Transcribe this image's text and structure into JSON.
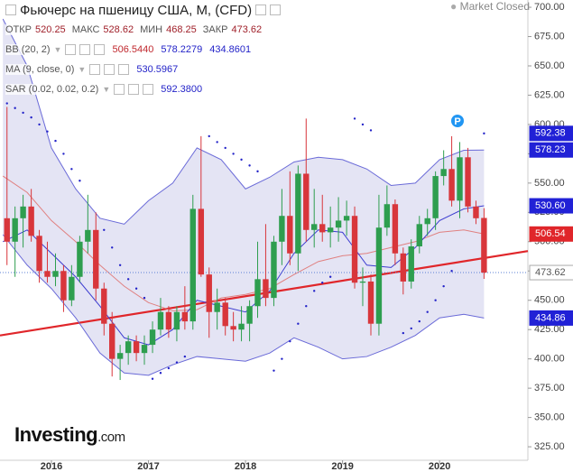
{
  "chart_data": {
    "type": "candlestick",
    "title": "Фьючерс на пшеницу США, М, (CFD)",
    "status": "Market Closed",
    "brand": "Investing",
    "brand_suffix": ".com",
    "annotation": "P",
    "ohlc_legend": [
      {
        "label": "ОТКР",
        "value": 520.25
      },
      {
        "label": "МАКС",
        "value": 528.62
      },
      {
        "label": "МИН",
        "value": 468.25
      },
      {
        "label": "ЗАКР",
        "value": 473.62
      }
    ],
    "indicators": [
      {
        "name": "BB (20, 2)",
        "values": [
          "506.5440",
          "578.2279",
          "434.8601"
        ],
        "colors": [
          "#c0282e",
          "#2323c8",
          "#2323c8"
        ]
      },
      {
        "name": "MA (9, close, 0)",
        "values": [
          "530.5967"
        ],
        "colors": [
          "#2323c8"
        ]
      },
      {
        "name": "SAR (0.02, 0.02, 0.2)",
        "values": [
          "592.3800"
        ],
        "colors": [
          "#2323c8"
        ]
      }
    ],
    "x": [
      2015.542,
      2015.625,
      2015.708,
      2015.792,
      2015.875,
      2015.958,
      2016.042,
      2016.125,
      2016.208,
      2016.292,
      2016.375,
      2016.458,
      2016.542,
      2016.625,
      2016.708,
      2016.792,
      2016.875,
      2016.958,
      2017.042,
      2017.125,
      2017.208,
      2017.292,
      2017.375,
      2017.458,
      2017.542,
      2017.625,
      2017.708,
      2017.792,
      2017.875,
      2017.958,
      2018.042,
      2018.125,
      2018.208,
      2018.292,
      2018.375,
      2018.458,
      2018.542,
      2018.625,
      2018.708,
      2018.792,
      2018.875,
      2018.958,
      2019.042,
      2019.125,
      2019.208,
      2019.292,
      2019.375,
      2019.458,
      2019.542,
      2019.625,
      2019.708,
      2019.792,
      2019.875,
      2019.958,
      2020.042,
      2020.125,
      2020.208,
      2020.292,
      2020.375,
      2020.458
    ],
    "open": [
      520,
      500,
      520,
      530,
      505,
      475,
      470,
      475,
      450,
      470,
      500,
      510,
      460,
      430,
      400,
      405,
      415,
      405,
      412,
      425,
      440,
      425,
      440,
      432,
      528,
      472,
      440,
      448,
      428,
      425,
      430,
      445,
      468,
      452,
      500,
      522,
      490,
      558,
      510,
      515,
      508,
      512,
      518,
      522,
      465,
      466,
      430,
      512,
      532,
      490,
      466,
      496,
      515,
      520,
      556,
      562,
      535,
      572,
      530,
      520.25
    ],
    "high": [
      615,
      530,
      540,
      545,
      510,
      500,
      490,
      480,
      480,
      505,
      540,
      525,
      465,
      440,
      412,
      420,
      420,
      420,
      432,
      452,
      445,
      445,
      462,
      540,
      590,
      478,
      460,
      452,
      440,
      445,
      450,
      500,
      515,
      505,
      545,
      560,
      565,
      605,
      545,
      540,
      530,
      538,
      535,
      530,
      478,
      472,
      540,
      548,
      536,
      495,
      502,
      522,
      528,
      560,
      578,
      590,
      585,
      580,
      535,
      528.62
    ],
    "low": [
      480,
      470,
      495,
      500,
      465,
      465,
      462,
      440,
      445,
      465,
      490,
      450,
      420,
      385,
      382,
      395,
      398,
      395,
      405,
      420,
      418,
      415,
      425,
      425,
      470,
      418,
      425,
      420,
      415,
      415,
      415,
      435,
      445,
      445,
      480,
      480,
      475,
      500,
      495,
      500,
      495,
      500,
      505,
      460,
      445,
      420,
      420,
      505,
      480,
      455,
      460,
      490,
      505,
      510,
      548,
      530,
      520,
      525,
      515,
      468.25
    ],
    "close": [
      500,
      520,
      530,
      505,
      475,
      470,
      475,
      450,
      470,
      500,
      510,
      460,
      430,
      400,
      405,
      415,
      405,
      412,
      425,
      440,
      425,
      440,
      432,
      528,
      472,
      440,
      448,
      428,
      425,
      430,
      445,
      468,
      452,
      500,
      522,
      490,
      558,
      510,
      515,
      508,
      512,
      518,
      522,
      465,
      466,
      430,
      512,
      532,
      490,
      466,
      496,
      515,
      520,
      556,
      562,
      535,
      572,
      530,
      520,
      473.62
    ],
    "up_color": "#2e9e4f",
    "down_color": "#d8363b",
    "overlay_x": [
      2015.5,
      2015.75,
      2016,
      2016.25,
      2016.5,
      2016.75,
      2017,
      2017.25,
      2017.5,
      2017.75,
      2018,
      2018.25,
      2018.5,
      2018.75,
      2019,
      2019.25,
      2019.5,
      2019.75,
      2020,
      2020.25,
      2020.458
    ],
    "band_fill": "#e4e4f4",
    "overlays": [
      {
        "values": [
          690,
          650,
          580,
          545,
          520,
          515,
          535,
          550,
          580,
          570,
          545,
          555,
          568,
          572,
          570,
          562,
          548,
          550,
          570,
          578,
          578.2279
        ],
        "color": "#6a6ad8"
      },
      {
        "values": [
          506,
          480,
          460,
          435,
          405,
          388,
          386,
          395,
          402,
          400,
          398,
          405,
          418,
          410,
          400,
          402,
          410,
          420,
          435,
          438,
          434.8601
        ],
        "color": "#6a6ad8"
      },
      {
        "values": [
          556,
          542,
          518,
          500,
          480,
          462,
          448,
          441,
          442,
          452,
          455,
          460,
          472,
          483,
          488,
          490,
          495,
          500,
          508,
          510,
          506.544
        ],
        "color": "#e08080"
      },
      {
        "values": [
          500,
          510,
          490,
          470,
          445,
          418,
          412,
          425,
          450,
          445,
          440,
          458,
          490,
          510,
          508,
          480,
          478,
          495,
          518,
          528,
          530.5967
        ],
        "color": "#3c3cd0"
      }
    ],
    "sar": {
      "color": "#2323c8",
      "x": [
        2015.542,
        2015.625,
        2015.708,
        2015.792,
        2015.875,
        2015.958,
        2016.042,
        2016.125,
        2016.208,
        2016.292,
        2016.542,
        2016.625,
        2016.708,
        2016.792,
        2016.875,
        2016.958,
        2017.042,
        2017.125,
        2017.208,
        2017.292,
        2017.375,
        2017.625,
        2017.708,
        2017.792,
        2017.875,
        2017.958,
        2018.042,
        2018.125,
        2018.292,
        2018.375,
        2018.458,
        2018.542,
        2018.625,
        2018.708,
        2018.792,
        2018.875,
        2019.125,
        2019.208,
        2019.292,
        2019.625,
        2019.708,
        2019.792,
        2019.875,
        2019.958,
        2020.042,
        2020.125,
        2020.458
      ],
      "values": [
        618,
        614,
        610,
        606,
        600,
        594,
        586,
        575,
        562,
        552,
        510,
        495,
        480,
        468,
        460,
        452,
        383,
        388,
        392,
        397,
        402,
        590,
        585,
        580,
        575,
        570,
        565,
        560,
        390,
        400,
        415,
        430,
        445,
        458,
        465,
        470,
        605,
        600,
        595,
        422,
        426,
        432,
        440,
        450,
        462,
        475,
        592.38
      ]
    },
    "trend": {
      "x": [
        2015.47,
        2020.91
      ],
      "values": [
        420,
        492
      ],
      "color": "#e0262a"
    },
    "last_labels": [
      {
        "value": 592.38,
        "label": "592.38",
        "color": "#2121d6",
        "text_color": "#ffffff"
      },
      {
        "value": 578.23,
        "label": "578.23",
        "color": "#2121d6",
        "text_color": "#ffffff"
      },
      {
        "value": 530.6,
        "label": "530.60",
        "color": "#2121d6",
        "text_color": "#ffffff"
      },
      {
        "value": 506.54,
        "label": "506.54",
        "color": "#e0262a",
        "text_color": "#ffffff"
      },
      {
        "value": 473.62,
        "label": "473.62",
        "color": "#ffffff",
        "text_color": "#555555"
      },
      {
        "value": 434.86,
        "label": "434.86",
        "color": "#2121d6",
        "text_color": "#ffffff"
      }
    ],
    "xlim": [
      2015.47,
      2020.91
    ],
    "ylim": [
      313.5,
      706.2
    ],
    "xticks": [
      2016,
      2017,
      2018,
      2019,
      2020
    ],
    "yticks": [
      {
        "value": 325,
        "label": "325.00"
      },
      {
        "value": 350,
        "label": "350.00"
      },
      {
        "value": 375,
        "label": "375.00"
      },
      {
        "value": 400,
        "label": "400.00"
      },
      {
        "value": 425,
        "label": "425.00"
      },
      {
        "value": 450,
        "label": "450.00"
      },
      {
        "value": 475,
        "label": "475.00"
      },
      {
        "value": 500,
        "label": "500.00"
      },
      {
        "value": 525,
        "label": "525.00"
      },
      {
        "value": 550,
        "label": "550.00"
      },
      {
        "value": 575,
        "label": "575.00"
      },
      {
        "value": 600,
        "label": "600.00"
      },
      {
        "value": 625,
        "label": "625.00"
      },
      {
        "value": 650,
        "label": "650.00"
      },
      {
        "value": 675,
        "label": "675.00"
      },
      {
        "value": 700,
        "label": "700.00"
      }
    ]
  }
}
